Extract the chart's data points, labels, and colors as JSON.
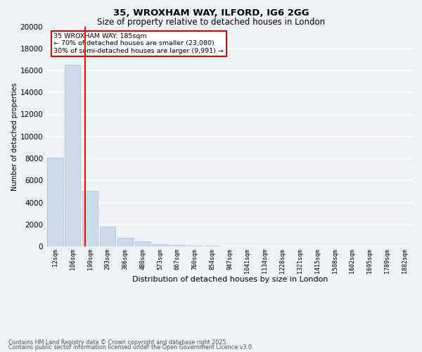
{
  "title1": "35, WROXHAM WAY, ILFORD, IG6 2GG",
  "title2": "Size of property relative to detached houses in London",
  "xlabel": "Distribution of detached houses by size in London",
  "ylabel": "Number of detached properties",
  "categories": [
    "12sqm",
    "106sqm",
    "199sqm",
    "293sqm",
    "386sqm",
    "480sqm",
    "573sqm",
    "667sqm",
    "760sqm",
    "854sqm",
    "947sqm",
    "1041sqm",
    "1134sqm",
    "1228sqm",
    "1321sqm",
    "1415sqm",
    "1508sqm",
    "1602sqm",
    "1695sqm",
    "1789sqm",
    "1882sqm"
  ],
  "values": [
    8050,
    16500,
    5050,
    1820,
    760,
    430,
    210,
    150,
    95,
    45,
    10,
    5,
    3,
    2,
    1,
    1,
    0,
    0,
    0,
    0,
    0
  ],
  "bar_color": "#cddaeb",
  "bar_edge_color": "#a8bdd4",
  "red_line_x": 1.72,
  "annotation_text": "35 WROXHAM WAY: 185sqm\n← 70% of detached houses are smaller (23,080)\n30% of semi-detached houses are larger (9,991) →",
  "annotation_box_color": "#ffffff",
  "annotation_box_edge": "#cc0000",
  "footer1": "Contains HM Land Registry data © Crown copyright and database right 2025.",
  "footer2": "Contains public sector information licensed under the Open Government Licence v3.0.",
  "ylim": [
    0,
    20000
  ],
  "yticks": [
    0,
    2000,
    4000,
    6000,
    8000,
    10000,
    12000,
    14000,
    16000,
    18000,
    20000
  ],
  "background_color": "#eef2f7",
  "grid_color": "#ffffff",
  "fig_width": 6.0,
  "fig_height": 5.0
}
